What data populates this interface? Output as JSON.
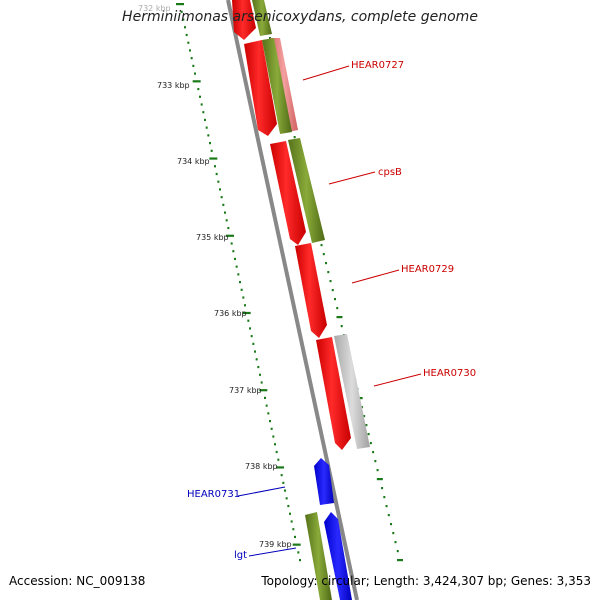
{
  "title": "Herminiimonas arsenicoxydans, complete genome",
  "accession": "Accession: NC_009138",
  "summary": "Topology: circular; Length: 3,424,307 bp; Genes: 3,353",
  "ticks": [
    "732 kbp",
    "733 kbp",
    "734 kbp",
    "735 kbp",
    "736 kbp",
    "737 kbp",
    "738 kbp",
    "739 kbp"
  ],
  "gene_labels": [
    {
      "text": "HEAR0727",
      "color": "#cc0000"
    },
    {
      "text": "cpsB",
      "color": "#cc0000"
    },
    {
      "text": "HEAR0729",
      "color": "#cc0000"
    },
    {
      "text": "HEAR0730",
      "color": "#cc0000"
    },
    {
      "text": "HEAR0731",
      "color": "#0000bb"
    },
    {
      "text": "lgt",
      "color": "#0000bb"
    }
  ],
  "colors": {
    "red_gene": "#ff0000",
    "pink_gene": "#ee8080",
    "olive_gene": "#6b8e23",
    "gray_gene": "#b8b8b8",
    "blue_gene": "#0000ee",
    "tick_green": "#1a7a1a",
    "backbone": "#888888"
  }
}
